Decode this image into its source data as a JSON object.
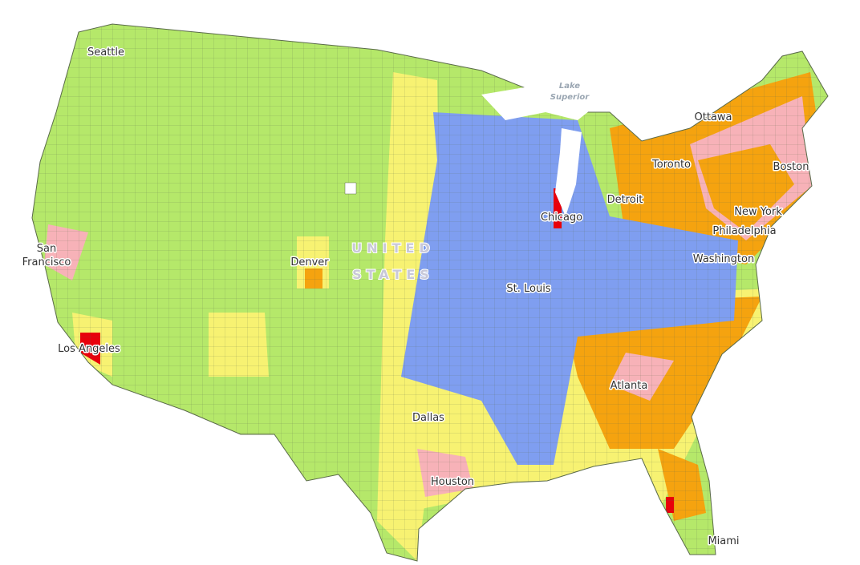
{
  "map": {
    "cities": [
      "Seattle",
      "Ottawa",
      "Toronto",
      "Boston",
      "Detroit",
      "Chicago",
      "New York",
      "Philadelphia",
      "Washington",
      "Denver",
      "St. Louis",
      "Los Angeles",
      "Atlanta",
      "Dallas",
      "Houston",
      "Miami"
    ],
    "san_francisco": [
      "San",
      "Francisco"
    ],
    "lake_label": [
      "Lake",
      "Superior"
    ],
    "country_label": [
      "UNITED",
      "STATES"
    ]
  }
}
